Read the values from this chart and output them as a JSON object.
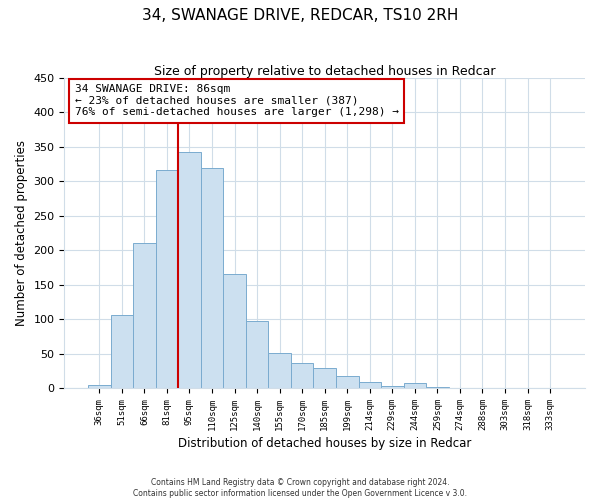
{
  "title": "34, SWANAGE DRIVE, REDCAR, TS10 2RH",
  "subtitle": "Size of property relative to detached houses in Redcar",
  "xlabel": "Distribution of detached houses by size in Redcar",
  "ylabel": "Number of detached properties",
  "bar_labels": [
    "36sqm",
    "51sqm",
    "66sqm",
    "81sqm",
    "95sqm",
    "110sqm",
    "125sqm",
    "140sqm",
    "155sqm",
    "170sqm",
    "185sqm",
    "199sqm",
    "214sqm",
    "229sqm",
    "244sqm",
    "259sqm",
    "274sqm",
    "288sqm",
    "303sqm",
    "318sqm",
    "333sqm"
  ],
  "bar_values": [
    5,
    106,
    210,
    316,
    343,
    320,
    165,
    97,
    51,
    37,
    29,
    18,
    9,
    3,
    7,
    2,
    0,
    0,
    0,
    0,
    0
  ],
  "bar_color": "#cce0f0",
  "bar_edge_color": "#7aabcf",
  "vline_x": 3.5,
  "vline_color": "#cc0000",
  "annotation_title": "34 SWANAGE DRIVE: 86sqm",
  "annotation_line1": "← 23% of detached houses are smaller (387)",
  "annotation_line2": "76% of semi-detached houses are larger (1,298) →",
  "annotation_box_color": "#ffffff",
  "annotation_box_edge": "#cc0000",
  "ylim": [
    0,
    450
  ],
  "yticks": [
    0,
    50,
    100,
    150,
    200,
    250,
    300,
    350,
    400,
    450
  ],
  "footer1": "Contains HM Land Registry data © Crown copyright and database right 2024.",
  "footer2": "Contains public sector information licensed under the Open Government Licence v 3.0.",
  "background_color": "#ffffff",
  "plot_background": "#ffffff",
  "grid_color": "#d0dde8"
}
